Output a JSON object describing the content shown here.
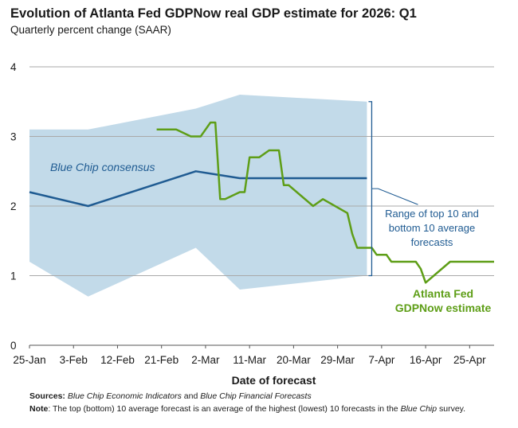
{
  "chart_data": {
    "type": "line",
    "title": "Evolution of Atlanta Fed GDPNow real GDP estimate for 2026: Q1",
    "subtitle": "Quarterly percent change (SAAR)",
    "xlabel": "Date of forecast",
    "ylabel": "",
    "ylim": [
      0,
      4
    ],
    "yticks": [
      "0",
      "1",
      "2",
      "3",
      "4"
    ],
    "xlim": [
      "2026-01-25",
      "2026-04-30"
    ],
    "xticks": [
      {
        "date": "2026-01-25",
        "label": "25-Jan"
      },
      {
        "date": "2026-02-03",
        "label": "3-Feb"
      },
      {
        "date": "2026-02-12",
        "label": "12-Feb"
      },
      {
        "date": "2026-02-21",
        "label": "21-Feb"
      },
      {
        "date": "2026-03-02",
        "label": "2-Mar"
      },
      {
        "date": "2026-03-11",
        "label": "11-Mar"
      },
      {
        "date": "2026-03-20",
        "label": "20-Mar"
      },
      {
        "date": "2026-03-29",
        "label": "29-Mar"
      },
      {
        "date": "2026-04-07",
        "label": "7-Apr"
      },
      {
        "date": "2026-04-16",
        "label": "16-Apr"
      },
      {
        "date": "2026-04-25",
        "label": "25-Apr"
      }
    ],
    "grid": "horizontal",
    "band": {
      "name": "Range of top 10 and bottom 10 average forecasts",
      "color": "#c2dae9",
      "x": [
        "2026-01-25",
        "2026-02-06",
        "2026-02-28",
        "2026-03-09",
        "2026-04-04"
      ],
      "upper": [
        3.1,
        3.1,
        3.4,
        3.6,
        3.5
      ],
      "lower": [
        1.2,
        0.7,
        1.4,
        0.8,
        1.0
      ]
    },
    "series": [
      {
        "name": "Blue Chip consensus",
        "color": "#1f5b92",
        "x": [
          "2026-01-25",
          "2026-02-06",
          "2026-02-28",
          "2026-03-09",
          "2026-04-04"
        ],
        "y": [
          2.2,
          2.0,
          2.5,
          2.4,
          2.4
        ]
      },
      {
        "name": "Atlanta Fed GDPNow estimate",
        "color": "#5e9e17",
        "x": [
          "2026-02-20",
          "2026-02-24",
          "2026-02-27",
          "2026-03-01",
          "2026-03-03",
          "2026-03-04",
          "2026-03-05",
          "2026-03-06",
          "2026-03-09",
          "2026-03-10",
          "2026-03-11",
          "2026-03-12",
          "2026-03-13",
          "2026-03-15",
          "2026-03-16",
          "2026-03-17",
          "2026-03-18",
          "2026-03-19",
          "2026-03-24",
          "2026-03-26",
          "2026-03-31",
          "2026-04-01",
          "2026-04-02",
          "2026-04-05",
          "2026-04-06",
          "2026-04-08",
          "2026-04-09",
          "2026-04-10",
          "2026-04-14",
          "2026-04-15",
          "2026-04-16",
          "2026-04-21",
          "2026-04-30"
        ],
        "y": [
          3.1,
          3.1,
          3.0,
          3.0,
          3.2,
          3.2,
          2.1,
          2.1,
          2.2,
          2.2,
          2.7,
          2.7,
          2.7,
          2.8,
          2.8,
          2.8,
          2.3,
          2.3,
          2.0,
          2.1,
          1.9,
          1.6,
          1.4,
          1.4,
          1.3,
          1.3,
          1.2,
          1.2,
          1.2,
          1.1,
          0.9,
          1.2,
          1.2
        ]
      }
    ],
    "annotations": {
      "consensus_label": "Blue Chip consensus",
      "range_label": [
        "Range of top 10 and",
        "bottom 10 average",
        "forecasts"
      ],
      "gdpnow_label": [
        "Atlanta Fed",
        "GDPNow estimate"
      ]
    }
  },
  "footnotes": {
    "sources_label": "Sources:",
    "sources_text_1": "Blue Chip Economic Indicators",
    "sources_text_2": " and ",
    "sources_text_3": "Blue Chip Financial Forecasts",
    "note_label": "Note",
    "note_text_1": ": The top (bottom) 10 average forecast is an average of the highest (lowest) 10 forecasts in the ",
    "note_text_2": "Blue Chip",
    "note_text_3": " survey."
  }
}
